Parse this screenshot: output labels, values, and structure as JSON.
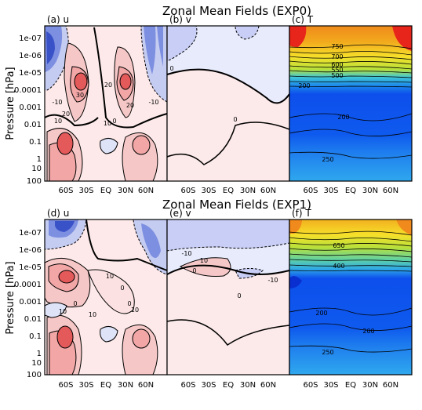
{
  "figure": {
    "rows": [
      {
        "title": "Zonal Mean Fields (EXP0)",
        "panels": [
          {
            "label": "(a) u",
            "kind": "u",
            "contour_labels": [
              "30",
              "20",
              "10",
              "10",
              "0",
              "20",
              "-10",
              "-10",
              "20"
            ]
          },
          {
            "label": "(b) v",
            "kind": "v",
            "contour_labels": [
              "0",
              "0"
            ]
          },
          {
            "label": "(c) T",
            "kind": "T",
            "contour_labels": [
              "750",
              "700",
              "600",
              "550",
              "500",
              "200",
              "200",
              "250"
            ]
          }
        ]
      },
      {
        "title": "Zonal Mean Fields (EXP1)",
        "panels": [
          {
            "label": "(d) u",
            "kind": "u",
            "contour_labels": [
              "10",
              "0",
              "10",
              "10",
              "0",
              "10",
              "0"
            ]
          },
          {
            "label": "(e) v",
            "kind": "v",
            "contour_labels": [
              "-10",
              "10",
              "-10",
              "0",
              "0"
            ]
          },
          {
            "label": "(f) T",
            "kind": "T",
            "contour_labels": [
              "650",
              "400",
              "200",
              "200",
              "250"
            ]
          }
        ]
      }
    ],
    "ylabel": "Pressure [hPa]",
    "xticks": [
      "60S",
      "30S",
      "EQ",
      "30N",
      "60N"
    ],
    "yticks": [
      "1e-07",
      "1e-06",
      "1e-05",
      "0.0001",
      "0.001",
      "0.01",
      "0.1",
      "1",
      "10",
      "100"
    ]
  },
  "chart_data": [
    {
      "type": "heatmap",
      "title": "(a) u",
      "xlabel": "",
      "ylabel": "Pressure [hPa]",
      "x": [
        "60S",
        "30S",
        "EQ",
        "30N",
        "60N"
      ],
      "y": [
        "1e-07",
        "1e-06",
        "1e-05",
        "0.0001",
        "0.001",
        "0.01",
        "0.1",
        "1",
        "10",
        "100"
      ],
      "contour_values": [
        -10,
        0,
        10,
        20,
        30
      ]
    },
    {
      "type": "heatmap",
      "title": "(b) v",
      "xlabel": "",
      "ylabel": "",
      "x": [
        "60S",
        "30S",
        "EQ",
        "30N",
        "60N"
      ],
      "y": [
        "1e-07",
        "1e-06",
        "1e-05",
        "0.0001",
        "0.001",
        "0.01",
        "0.1",
        "1",
        "10",
        "100"
      ],
      "contour_values": [
        0
      ]
    },
    {
      "type": "heatmap",
      "title": "(c) T",
      "xlabel": "",
      "ylabel": "",
      "x": [
        "60S",
        "30S",
        "EQ",
        "30N",
        "60N"
      ],
      "y": [
        "1e-07",
        "1e-06",
        "1e-05",
        "0.0001",
        "0.001",
        "0.01",
        "0.1",
        "1",
        "10",
        "100"
      ],
      "contour_values": [
        200,
        250,
        500,
        550,
        600,
        700,
        750
      ]
    },
    {
      "type": "heatmap",
      "title": "(d) u",
      "xlabel": "",
      "ylabel": "Pressure [hPa]",
      "x": [
        "60S",
        "30S",
        "EQ",
        "30N",
        "60N"
      ],
      "y": [
        "1e-07",
        "1e-06",
        "1e-05",
        "0.0001",
        "0.001",
        "0.01",
        "0.1",
        "1",
        "10",
        "100"
      ],
      "contour_values": [
        0,
        10
      ]
    },
    {
      "type": "heatmap",
      "title": "(e) v",
      "xlabel": "",
      "ylabel": "",
      "x": [
        "60S",
        "30S",
        "EQ",
        "30N",
        "60N"
      ],
      "y": [
        "1e-07",
        "1e-06",
        "1e-05",
        "0.0001",
        "0.001",
        "0.01",
        "0.1",
        "1",
        "10",
        "100"
      ],
      "contour_values": [
        -10,
        0,
        10
      ]
    },
    {
      "type": "heatmap",
      "title": "(f) T",
      "xlabel": "",
      "ylabel": "",
      "x": [
        "60S",
        "30S",
        "EQ",
        "30N",
        "60N"
      ],
      "y": [
        "1e-07",
        "1e-06",
        "1e-05",
        "0.0001",
        "0.001",
        "0.01",
        "0.1",
        "1",
        "10",
        "100"
      ],
      "contour_values": [
        200,
        250,
        400,
        650
      ]
    }
  ],
  "colors": {
    "u_neg_strong": "#3a52c8",
    "u_neg_mid": "#7d8fe0",
    "u_neg_light": "#c5ccf2",
    "u_pos_light": "#fbe1e1",
    "u_pos_mid": "#f2a6a6",
    "u_pos_strong": "#e45a5a",
    "v_bg": "#e8ebfc",
    "v_pos": "#fce9e9",
    "t_low": "#0a42ec",
    "t_high": "#f7e22a",
    "t_hot": "#e8251a"
  }
}
